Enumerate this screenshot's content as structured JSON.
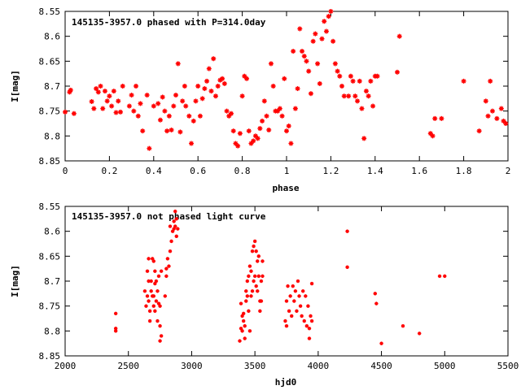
{
  "chart_data": [
    {
      "type": "scatter",
      "title": "145135-3957.0 phased with P=314.0day",
      "xlabel": "phase",
      "ylabel": "I[mag]",
      "xlim": [
        0,
        2
      ],
      "ylim": [
        8.85,
        8.55
      ],
      "y_inverted": true,
      "xticks": [
        "0",
        "0.2",
        "0.4",
        "0.6",
        "0.8",
        "1",
        "1.2",
        "1.4",
        "1.6",
        "1.8",
        "2"
      ],
      "yticks": [
        "8.55",
        "8.6",
        "8.65",
        "8.7",
        "8.75",
        "8.8",
        "8.85"
      ],
      "grid": false,
      "marker_color": "#ff0000",
      "points": [
        [
          0.0,
          8.752
        ],
        [
          0.02,
          8.712
        ],
        [
          0.025,
          8.708
        ],
        [
          0.04,
          8.755
        ],
        [
          0.12,
          8.731
        ],
        [
          0.13,
          8.745
        ],
        [
          0.14,
          8.705
        ],
        [
          0.15,
          8.712
        ],
        [
          0.16,
          8.7
        ],
        [
          0.17,
          8.745
        ],
        [
          0.18,
          8.71
        ],
        [
          0.19,
          8.73
        ],
        [
          0.2,
          8.72
        ],
        [
          0.21,
          8.74
        ],
        [
          0.22,
          8.71
        ],
        [
          0.23,
          8.753
        ],
        [
          0.24,
          8.73
        ],
        [
          0.25,
          8.752
        ],
        [
          0.26,
          8.7
        ],
        [
          0.29,
          8.74
        ],
        [
          0.3,
          8.718
        ],
        [
          0.31,
          8.75
        ],
        [
          0.32,
          8.7
        ],
        [
          0.33,
          8.76
        ],
        [
          0.34,
          8.735
        ],
        [
          0.35,
          8.79
        ],
        [
          0.37,
          8.718
        ],
        [
          0.38,
          8.825
        ],
        [
          0.4,
          8.74
        ],
        [
          0.42,
          8.735
        ],
        [
          0.43,
          8.768
        ],
        [
          0.44,
          8.722
        ],
        [
          0.45,
          8.75
        ],
        [
          0.46,
          8.79
        ],
        [
          0.47,
          8.76
        ],
        [
          0.48,
          8.788
        ],
        [
          0.49,
          8.74
        ],
        [
          0.5,
          8.718
        ],
        [
          0.51,
          8.655
        ],
        [
          0.52,
          8.792
        ],
        [
          0.53,
          8.73
        ],
        [
          0.54,
          8.7
        ],
        [
          0.545,
          8.74
        ],
        [
          0.56,
          8.76
        ],
        [
          0.57,
          8.815
        ],
        [
          0.58,
          8.77
        ],
        [
          0.59,
          8.73
        ],
        [
          0.6,
          8.7
        ],
        [
          0.61,
          8.76
        ],
        [
          0.62,
          8.725
        ],
        [
          0.63,
          8.705
        ],
        [
          0.64,
          8.69
        ],
        [
          0.65,
          8.665
        ],
        [
          0.66,
          8.71
        ],
        [
          0.67,
          8.645
        ],
        [
          0.68,
          8.72
        ],
        [
          0.69,
          8.7
        ],
        [
          0.7,
          8.688
        ],
        [
          0.71,
          8.685
        ],
        [
          0.72,
          8.695
        ],
        [
          0.73,
          8.75
        ],
        [
          0.74,
          8.76
        ],
        [
          0.75,
          8.755
        ],
        [
          0.76,
          8.79
        ],
        [
          0.77,
          8.815
        ],
        [
          0.78,
          8.82
        ],
        [
          0.79,
          8.795
        ],
        [
          0.8,
          8.72
        ],
        [
          0.81,
          8.68
        ],
        [
          0.82,
          8.685
        ],
        [
          0.83,
          8.79
        ],
        [
          0.84,
          8.815
        ],
        [
          0.85,
          8.81
        ],
        [
          0.86,
          8.8
        ],
        [
          0.87,
          8.805
        ],
        [
          0.88,
          8.785
        ],
        [
          0.89,
          8.77
        ],
        [
          0.9,
          8.73
        ],
        [
          0.91,
          8.76
        ],
        [
          0.92,
          8.788
        ],
        [
          0.93,
          8.655
        ],
        [
          0.94,
          8.7
        ],
        [
          0.95,
          8.75
        ],
        [
          0.96,
          8.75
        ],
        [
          0.97,
          8.745
        ],
        [
          0.98,
          8.76
        ],
        [
          0.99,
          8.685
        ],
        [
          1.0,
          8.79
        ],
        [
          1.01,
          8.78
        ],
        [
          1.02,
          8.815
        ],
        [
          1.03,
          8.63
        ],
        [
          1.04,
          8.745
        ],
        [
          1.05,
          8.705
        ],
        [
          1.06,
          8.585
        ],
        [
          1.07,
          8.63
        ],
        [
          1.08,
          8.64
        ],
        [
          1.09,
          8.65
        ],
        [
          1.1,
          8.67
        ],
        [
          1.11,
          8.715
        ],
        [
          1.12,
          8.61
        ],
        [
          1.13,
          8.595
        ],
        [
          1.14,
          8.655
        ],
        [
          1.15,
          8.695
        ],
        [
          1.16,
          8.605
        ],
        [
          1.17,
          8.57
        ],
        [
          1.18,
          8.59
        ],
        [
          1.19,
          8.56
        ],
        [
          1.2,
          8.55
        ],
        [
          1.21,
          8.61
        ],
        [
          1.22,
          8.655
        ],
        [
          1.23,
          8.67
        ],
        [
          1.24,
          8.68
        ],
        [
          1.25,
          8.7
        ],
        [
          1.26,
          8.72
        ],
        [
          1.28,
          8.72
        ],
        [
          1.29,
          8.68
        ],
        [
          1.3,
          8.69
        ],
        [
          1.31,
          8.72
        ],
        [
          1.32,
          8.73
        ],
        [
          1.33,
          8.69
        ],
        [
          1.34,
          8.745
        ],
        [
          1.35,
          8.805
        ],
        [
          1.36,
          8.71
        ],
        [
          1.37,
          8.72
        ],
        [
          1.38,
          8.69
        ],
        [
          1.39,
          8.74
        ],
        [
          1.4,
          8.68
        ],
        [
          1.41,
          8.68
        ],
        [
          1.5,
          8.672
        ],
        [
          1.51,
          8.6
        ],
        [
          1.65,
          8.795
        ],
        [
          1.66,
          8.8
        ],
        [
          1.67,
          8.765
        ],
        [
          1.7,
          8.765
        ],
        [
          1.8,
          8.69
        ],
        [
          1.87,
          8.79
        ],
        [
          1.9,
          8.73
        ],
        [
          1.91,
          8.76
        ],
        [
          1.92,
          8.69
        ],
        [
          1.93,
          8.75
        ],
        [
          1.95,
          8.765
        ],
        [
          1.97,
          8.745
        ],
        [
          1.98,
          8.77
        ],
        [
          1.99,
          8.775
        ]
      ]
    },
    {
      "type": "scatter",
      "title": "145135-3957.0 not phased light curve",
      "xlabel": "hjd0",
      "ylabel": "I[mag]",
      "xlim": [
        2000,
        5500
      ],
      "ylim": [
        8.85,
        8.55
      ],
      "y_inverted": true,
      "xticks": [
        "2000",
        "2500",
        "3000",
        "3500",
        "4000",
        "4500",
        "5000",
        "5500"
      ],
      "yticks": [
        "8.55",
        "8.6",
        "8.65",
        "8.7",
        "8.75",
        "8.8",
        "8.85"
      ],
      "grid": false,
      "marker_color": "#ff0000",
      "points": [
        [
          2400,
          8.765
        ],
        [
          2400,
          8.795
        ],
        [
          2400,
          8.8
        ],
        [
          2630,
          8.72
        ],
        [
          2640,
          8.75
        ],
        [
          2650,
          8.73
        ],
        [
          2650,
          8.68
        ],
        [
          2660,
          8.7
        ],
        [
          2660,
          8.655
        ],
        [
          2660,
          8.74
        ],
        [
          2670,
          8.76
        ],
        [
          2670,
          8.78
        ],
        [
          2680,
          8.7
        ],
        [
          2680,
          8.72
        ],
        [
          2690,
          8.73
        ],
        [
          2690,
          8.655
        ],
        [
          2700,
          8.75
        ],
        [
          2700,
          8.66
        ],
        [
          2700,
          8.73
        ],
        [
          2710,
          8.68
        ],
        [
          2710,
          8.705
        ],
        [
          2710,
          8.76
        ],
        [
          2720,
          8.74
        ],
        [
          2720,
          8.7
        ],
        [
          2730,
          8.72
        ],
        [
          2730,
          8.78
        ],
        [
          2740,
          8.745
        ],
        [
          2740,
          8.69
        ],
        [
          2750,
          8.75
        ],
        [
          2750,
          8.79
        ],
        [
          2750,
          8.82
        ],
        [
          2760,
          8.81
        ],
        [
          2760,
          8.68
        ],
        [
          2790,
          8.73
        ],
        [
          2800,
          8.69
        ],
        [
          2800,
          8.675
        ],
        [
          2810,
          8.655
        ],
        [
          2820,
          8.67
        ],
        [
          2830,
          8.59
        ],
        [
          2830,
          8.64
        ],
        [
          2840,
          8.62
        ],
        [
          2850,
          8.6
        ],
        [
          2860,
          8.58
        ],
        [
          2860,
          8.595
        ],
        [
          2870,
          8.56
        ],
        [
          2870,
          8.59
        ],
        [
          2880,
          8.575
        ],
        [
          2880,
          8.61
        ],
        [
          2890,
          8.595
        ],
        [
          3380,
          8.82
        ],
        [
          3390,
          8.745
        ],
        [
          3390,
          8.795
        ],
        [
          3400,
          8.8
        ],
        [
          3400,
          8.77
        ],
        [
          3410,
          8.765
        ],
        [
          3410,
          8.78
        ],
        [
          3420,
          8.79
        ],
        [
          3420,
          8.815
        ],
        [
          3430,
          8.72
        ],
        [
          3430,
          8.74
        ],
        [
          3440,
          8.7
        ],
        [
          3440,
          8.73
        ],
        [
          3450,
          8.69
        ],
        [
          3450,
          8.76
        ],
        [
          3460,
          8.8
        ],
        [
          3460,
          8.67
        ],
        [
          3470,
          8.73
        ],
        [
          3470,
          8.68
        ],
        [
          3480,
          8.64
        ],
        [
          3480,
          8.72
        ],
        [
          3490,
          8.63
        ],
        [
          3490,
          8.7
        ],
        [
          3500,
          8.69
        ],
        [
          3500,
          8.62
        ],
        [
          3510,
          8.64
        ],
        [
          3510,
          8.71
        ],
        [
          3520,
          8.66
        ],
        [
          3520,
          8.72
        ],
        [
          3530,
          8.65
        ],
        [
          3530,
          8.69
        ],
        [
          3540,
          8.74
        ],
        [
          3540,
          8.76
        ],
        [
          3550,
          8.7
        ],
        [
          3550,
          8.74
        ],
        [
          3560,
          8.66
        ],
        [
          3560,
          8.69
        ],
        [
          3740,
          8.78
        ],
        [
          3750,
          8.74
        ],
        [
          3750,
          8.79
        ],
        [
          3760,
          8.71
        ],
        [
          3770,
          8.76
        ],
        [
          3780,
          8.73
        ],
        [
          3790,
          8.77
        ],
        [
          3800,
          8.71
        ],
        [
          3810,
          8.74
        ],
        [
          3820,
          8.72
        ],
        [
          3830,
          8.76
        ],
        [
          3840,
          8.7
        ],
        [
          3850,
          8.73
        ],
        [
          3860,
          8.75
        ],
        [
          3870,
          8.77
        ],
        [
          3880,
          8.72
        ],
        [
          3890,
          8.78
        ],
        [
          3900,
          8.73
        ],
        [
          3910,
          8.79
        ],
        [
          3920,
          8.75
        ],
        [
          3930,
          8.795
        ],
        [
          3930,
          8.815
        ],
        [
          3940,
          8.77
        ],
        [
          3950,
          8.705
        ],
        [
          3950,
          8.78
        ],
        [
          4230,
          8.672
        ],
        [
          4230,
          8.6
        ],
        [
          4450,
          8.725
        ],
        [
          4460,
          8.745
        ],
        [
          4500,
          8.825
        ],
        [
          4670,
          8.79
        ],
        [
          4800,
          8.805
        ],
        [
          4960,
          8.69
        ],
        [
          5000,
          8.69
        ]
      ]
    }
  ]
}
